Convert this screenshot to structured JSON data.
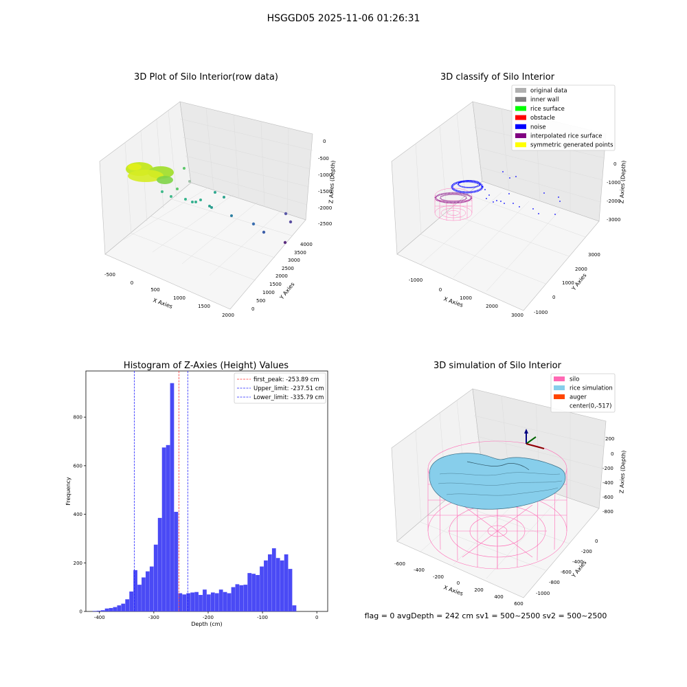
{
  "figure": {
    "title": "HSGGD05 2025-11-06 01:26:31",
    "footer": "flag = 0     avgDepth = 242 cm  sv1 = 500~2500  sv2 = 500~2500"
  },
  "colors": {
    "hist_bar": "#4a4af5",
    "peak_line": "#ff3030",
    "limit_line": "#2020ff",
    "silo": "#ff69b4",
    "rice_simulation": "#87ceeb",
    "auger": "#ff4500",
    "original_data": "#b0b0b0",
    "inner_wall": "#808080",
    "rice_surface": "#00ff00",
    "obstacle": "#ff0000",
    "noise": "#0000ff",
    "interpolated_rice_surface": "#800080",
    "symmetric_generated_points": "#ffff00"
  },
  "panel1": {
    "title": "3D Plot of Silo Interior(row data)",
    "xlabel": "X Axies",
    "ylabel": "Y Axies",
    "zlabel": "Z Axies (Depth)",
    "xticks": [
      "-500",
      "0",
      "500",
      "1000",
      "1500",
      "2000"
    ],
    "yticks": [
      "0",
      "500",
      "1000",
      "1500",
      "2000",
      "2500",
      "3000",
      "3500",
      "4000"
    ],
    "zticks": [
      "0",
      "-500",
      "-1000",
      "-1500",
      "-2000",
      "-2500"
    ]
  },
  "panel2": {
    "title": "3D classify of Silo Interior",
    "xlabel": "X Axies",
    "ylabel": "Y Axies",
    "zlabel": "Z Axies (Depth)",
    "xticks": [
      "-1000",
      "0",
      "1000",
      "2000",
      "3000"
    ],
    "yticks": [
      "-1000",
      "0",
      "1000",
      "2000",
      "3000"
    ],
    "zticks": [
      "0",
      "-1000",
      "-2000",
      "-3000"
    ],
    "legend": [
      {
        "label": "original data",
        "color": "#b0b0b0"
      },
      {
        "label": "inner wall",
        "color": "#808080"
      },
      {
        "label": "rice surface",
        "color": "#00ff00"
      },
      {
        "label": "obstacle",
        "color": "#ff0000"
      },
      {
        "label": "noise",
        "color": "#0000ff"
      },
      {
        "label": "interpolated rice surface",
        "color": "#800080"
      },
      {
        "label": "symmetric generated points",
        "color": "#ffff00"
      }
    ]
  },
  "panel4": {
    "title": "3D simulation of Silo Interior",
    "xlabel": "X Axies",
    "ylabel": "Y Axies",
    "zlabel": "Z Axies (Depth)",
    "xticks": [
      "-600",
      "-400",
      "-200",
      "0",
      "200",
      "400",
      "600"
    ],
    "yticks": [
      "0",
      "-200",
      "-400",
      "-600",
      "-800",
      "-1000"
    ],
    "zticks": [
      "200",
      "0",
      "-200",
      "-400",
      "-600",
      "-800"
    ],
    "legend": [
      {
        "label": "silo",
        "color": "#ff69b4"
      },
      {
        "label": "rice simulation",
        "color": "#87ceeb"
      },
      {
        "label": "auger",
        "color": "#ff4500"
      },
      {
        "label": "center(0,-517)",
        "color": ""
      }
    ]
  },
  "chart_data": {
    "type": "bar",
    "title": "Histogram of Z-Axies (Height) Values",
    "xlabel": "Depth (cm)",
    "ylabel": "Frequency",
    "xlim": [
      -425,
      20
    ],
    "ylim": [
      0,
      990
    ],
    "xticks": [
      -400,
      -300,
      -200,
      -100,
      0
    ],
    "yticks": [
      0,
      200,
      400,
      600,
      800
    ],
    "bin_width": 7.5,
    "bin_start": -412.5,
    "values": [
      2,
      3,
      5,
      12,
      14,
      18,
      25,
      32,
      50,
      82,
      170,
      110,
      140,
      165,
      185,
      275,
      385,
      675,
      685,
      940,
      410,
      75,
      70,
      75,
      78,
      80,
      68,
      90,
      70,
      78,
      75,
      90,
      80,
      75,
      100,
      112,
      108,
      110,
      158,
      155,
      150,
      185,
      210,
      235,
      260,
      220,
      210,
      235,
      175,
      25
    ],
    "lines": [
      {
        "label": "first_peak: -253.89 cm",
        "x": -253.89,
        "color": "#ff3030"
      },
      {
        "label": "Upper_limit: -237.51 cm",
        "x": -237.51,
        "color": "#2020ff"
      },
      {
        "label": "Lower_limit: -335.79 cm",
        "x": -335.79,
        "color": "#2020ff"
      }
    ]
  }
}
